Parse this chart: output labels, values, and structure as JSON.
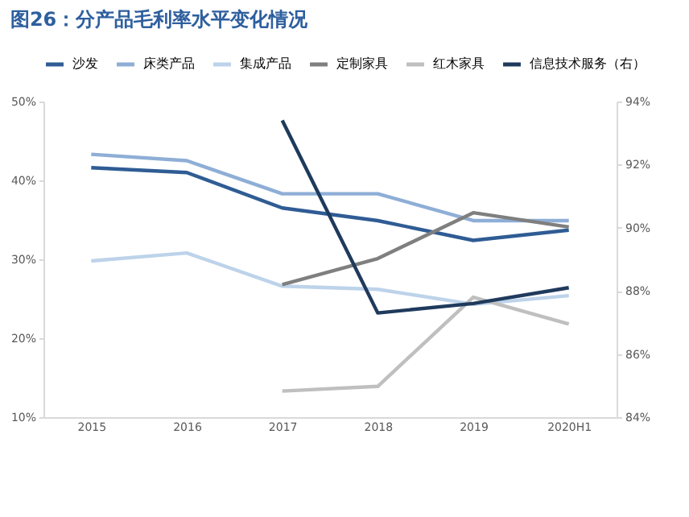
{
  "chart_data": {
    "type": "line",
    "title": "图26：分产品毛利率水平变化情况",
    "categories": [
      "2015",
      "2016",
      "2017",
      "2018",
      "2019",
      "2020H1"
    ],
    "series": [
      {
        "name": "沙发",
        "color": "#2f5c94",
        "values": [
          41.6,
          41.0,
          36.5,
          34.9,
          32.4,
          33.7
        ]
      },
      {
        "name": "床类产品",
        "color": "#8eaed6",
        "values": [
          43.3,
          42.5,
          38.3,
          38.3,
          34.9,
          34.9
        ]
      },
      {
        "name": "集成产品",
        "color": "#bdd3ea",
        "values": [
          29.8,
          30.8,
          26.6,
          26.2,
          24.3,
          25.4
        ]
      },
      {
        "name": "定制家具",
        "color": "#7f7f7f",
        "values": [
          null,
          null,
          26.8,
          30.1,
          35.9,
          34.1
        ]
      },
      {
        "name": "红木家具",
        "color": "#bfbfbf",
        "values": [
          null,
          null,
          13.3,
          13.9,
          25.2,
          21.8
        ]
      },
      {
        "name": "信息技术服务（右）",
        "color": "#1f3a5c",
        "axis": "y2",
        "values": [
          null,
          null,
          93.4,
          87.3,
          87.6,
          88.1
        ]
      }
    ],
    "ylim": [
      10,
      50
    ],
    "yticks": [
      {
        "value": 10,
        "label": "10%"
      },
      {
        "value": 20,
        "label": "20%"
      },
      {
        "value": 30,
        "label": "30%"
      },
      {
        "value": 40,
        "label": "40%"
      },
      {
        "value": 50,
        "label": "50%"
      }
    ],
    "y2lim": [
      84,
      94
    ],
    "y2ticks": [
      {
        "value": 84,
        "label": "84%"
      },
      {
        "value": 86,
        "label": "86%"
      },
      {
        "value": 88,
        "label": "88%"
      },
      {
        "value": 90,
        "label": "90%"
      },
      {
        "value": 92,
        "label": "92%"
      },
      {
        "value": 94,
        "label": "94%"
      }
    ],
    "grid": false,
    "legend": "top",
    "marker": "none",
    "line_style": "solid"
  }
}
